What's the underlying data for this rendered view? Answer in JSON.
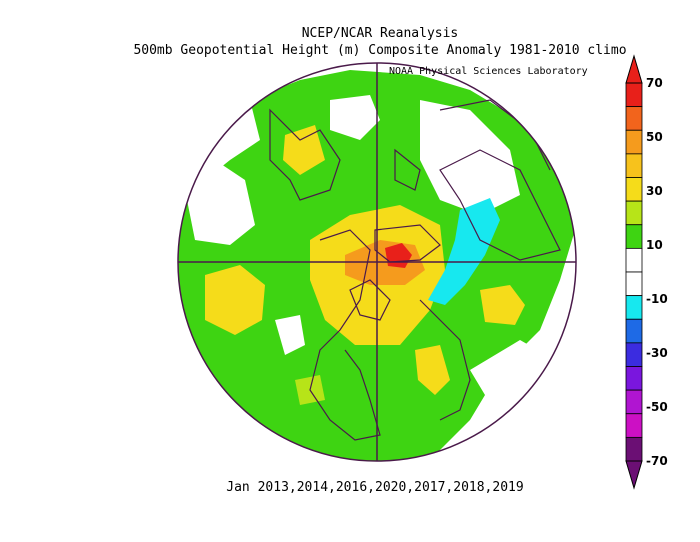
{
  "titles": {
    "line1": "NCEP/NCAR Reanalysis",
    "line2": "500mb Geopotential Height (m) Composite Anomaly 1981-2010 climo",
    "credit": "NOAA Physical Sciences Laboratory"
  },
  "caption": "Jan 2013,2014,2016,2020,2017,2018,2019",
  "map": {
    "projection": "north-polar-stereographic",
    "background_color": "#ffffff",
    "land_outline_color": "#4a1a4a",
    "anomaly_regions": [
      {
        "name": "greenland-ridge",
        "level": 50
      },
      {
        "name": "greenland-core",
        "level": 70
      },
      {
        "name": "baffin-core",
        "level": 50
      },
      {
        "name": "siberia-trough",
        "level": -10
      },
      {
        "name": "east-pacific",
        "level": 30
      },
      {
        "name": "north-america",
        "level": 30
      },
      {
        "name": "north-africa",
        "level": 30
      }
    ]
  },
  "colorbar": {
    "levels": [
      {
        "value": "70",
        "color": "#e8201a"
      },
      {
        "value": "50",
        "color": "#f59b1d"
      },
      {
        "value": "30",
        "color": "#f5dc1a"
      },
      {
        "value": "10",
        "color": "#3ed412"
      },
      {
        "value": "-10",
        "color": "#ffffff"
      },
      {
        "value": "-30",
        "color": "#17e8ef"
      },
      {
        "value": "-50",
        "color": "#4b24e6"
      },
      {
        "value": "-70",
        "color": "#b015d1"
      }
    ],
    "bins": [
      "#e8201a",
      "#f2641c",
      "#f59b1d",
      "#f7c21c",
      "#f5dc1a",
      "#b7e418",
      "#3ed412",
      "#ffffff",
      "#ffffff",
      "#17e8ef",
      "#1e6ae6",
      "#3b2ce0",
      "#7a16de",
      "#b015d1",
      "#cc10c4",
      "#6b0f74"
    ],
    "tip_top_color": "#e8201a",
    "tip_bottom_color": "#6b0f74"
  }
}
